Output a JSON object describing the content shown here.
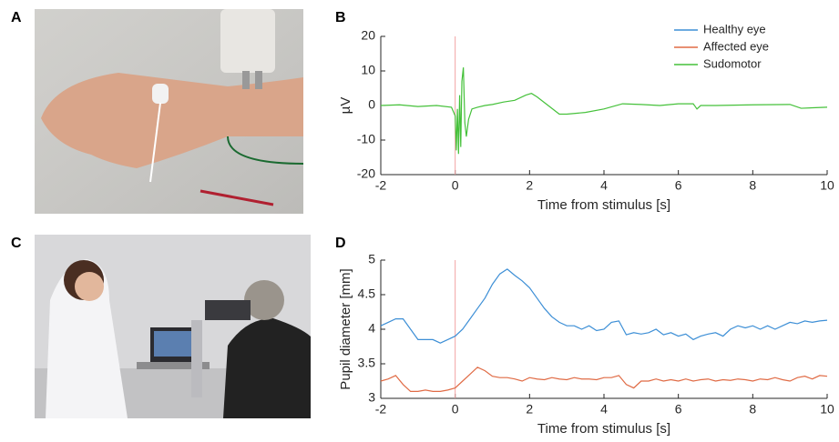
{
  "panels": [
    "A",
    "B",
    "C",
    "D"
  ],
  "legend": {
    "corner": "upper right",
    "entries": [
      {
        "name": "Healthy eye",
        "color": "#3d8fd6"
      },
      {
        "name": "Affected eye",
        "color": "#e06b45"
      },
      {
        "name": "Sudomotor",
        "color": "#45c13a"
      }
    ]
  },
  "chart_data": [
    {
      "type": "line",
      "xlabel": "Time from stimulus [s]",
      "ylabel": "µV",
      "xlim": [
        -2,
        10
      ],
      "xticks": [
        -2,
        0,
        2,
        4,
        6,
        8,
        10
      ],
      "ylim": [
        -20,
        20
      ],
      "yticks": [
        -20,
        -10,
        0,
        10,
        20
      ],
      "stimulus_line": {
        "x": 0,
        "color": "#f2a3a3"
      },
      "x": [
        -2,
        -1.5,
        -1,
        -0.5,
        -0.1,
        0,
        0.03,
        0.06,
        0.09,
        0.12,
        0.15,
        0.18,
        0.22,
        0.26,
        0.3,
        0.36,
        0.45,
        0.6,
        0.8,
        1,
        1.3,
        1.6,
        1.9,
        2.05,
        2.2,
        2.5,
        2.8,
        3,
        3.5,
        4,
        4.5,
        5,
        5.5,
        6,
        6.4,
        6.5,
        6.6,
        7,
        8,
        9,
        9.3,
        10
      ],
      "series": [
        {
          "color": "#45c13a",
          "values": [
            0,
            0.2,
            -0.3,
            0,
            -0.5,
            -3,
            -13,
            -1,
            -14,
            3,
            -12,
            7,
            11,
            -5,
            -9,
            -4,
            -1,
            -0.5,
            0,
            0.3,
            1,
            1.5,
            3,
            3.5,
            2.5,
            0,
            -2.5,
            -2.5,
            -2,
            -1,
            0.5,
            0.3,
            0,
            0.5,
            0.5,
            -1,
            0,
            0,
            0.2,
            0.3,
            -0.8,
            -0.5
          ]
        }
      ]
    },
    {
      "type": "line",
      "xlabel": "Time from stimulus [s]",
      "ylabel": "Pupil diameter [mm]",
      "xlim": [
        -2,
        10
      ],
      "xticks": [
        -2,
        0,
        2,
        4,
        6,
        8,
        10
      ],
      "ylim": [
        3,
        5
      ],
      "yticks": [
        3,
        3.5,
        4,
        4.5,
        5
      ],
      "stimulus_line": {
        "x": 0,
        "color": "#f2a3a3"
      },
      "x": [
        -2,
        -1.8,
        -1.6,
        -1.4,
        -1.2,
        -1,
        -0.8,
        -0.6,
        -0.4,
        -0.2,
        0,
        0.2,
        0.4,
        0.6,
        0.8,
        1,
        1.2,
        1.4,
        1.6,
        1.8,
        2,
        2.2,
        2.4,
        2.6,
        2.8,
        3,
        3.2,
        3.4,
        3.6,
        3.8,
        4,
        4.2,
        4.4,
        4.6,
        4.8,
        5,
        5.2,
        5.4,
        5.6,
        5.8,
        6,
        6.2,
        6.4,
        6.6,
        6.8,
        7,
        7.2,
        7.4,
        7.6,
        7.8,
        8,
        8.2,
        8.4,
        8.6,
        8.8,
        9,
        9.2,
        9.4,
        9.6,
        9.8,
        10
      ],
      "series": [
        {
          "color": "#3d8fd6",
          "values": [
            4.05,
            4.1,
            4.15,
            4.15,
            4.0,
            3.85,
            3.85,
            3.85,
            3.8,
            3.85,
            3.9,
            4.0,
            4.15,
            4.3,
            4.45,
            4.65,
            4.8,
            4.87,
            4.78,
            4.7,
            4.6,
            4.45,
            4.3,
            4.18,
            4.1,
            4.05,
            4.05,
            4.0,
            4.05,
            3.98,
            4.0,
            4.1,
            4.12,
            3.92,
            3.95,
            3.93,
            3.95,
            4.0,
            3.92,
            3.95,
            3.9,
            3.93,
            3.85,
            3.9,
            3.93,
            3.95,
            3.9,
            4.0,
            4.05,
            4.02,
            4.05,
            4.0,
            4.05,
            4.0,
            4.05,
            4.1,
            4.08,
            4.12,
            4.1,
            4.12,
            4.13
          ]
        },
        {
          "color": "#e06b45",
          "values": [
            3.25,
            3.28,
            3.33,
            3.2,
            3.1,
            3.1,
            3.12,
            3.1,
            3.1,
            3.12,
            3.15,
            3.25,
            3.35,
            3.45,
            3.4,
            3.32,
            3.3,
            3.3,
            3.28,
            3.25,
            3.3,
            3.28,
            3.27,
            3.3,
            3.28,
            3.27,
            3.3,
            3.28,
            3.28,
            3.27,
            3.3,
            3.3,
            3.33,
            3.2,
            3.15,
            3.25,
            3.25,
            3.28,
            3.25,
            3.27,
            3.25,
            3.28,
            3.25,
            3.27,
            3.28,
            3.25,
            3.27,
            3.26,
            3.28,
            3.27,
            3.25,
            3.28,
            3.27,
            3.3,
            3.27,
            3.25,
            3.3,
            3.32,
            3.28,
            3.33,
            3.32
          ]
        }
      ]
    }
  ]
}
